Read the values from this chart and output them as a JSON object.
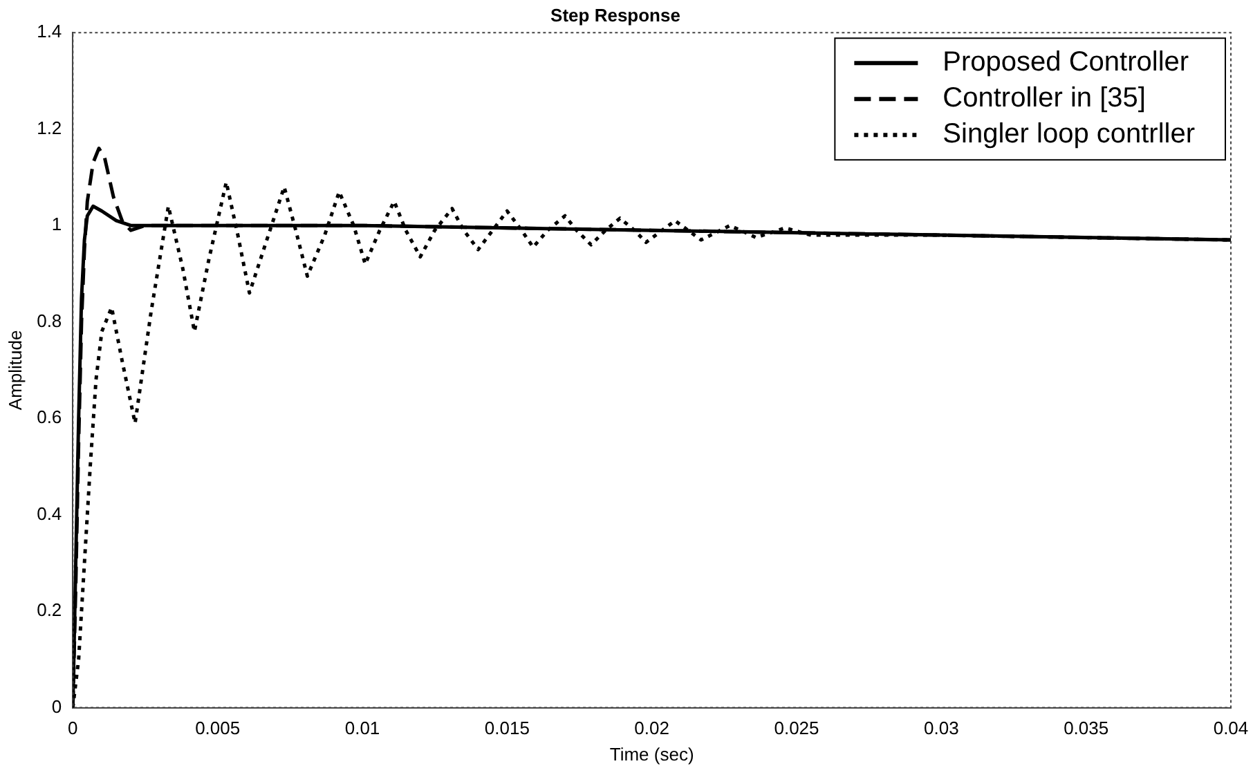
{
  "chart_data": {
    "type": "line",
    "title": "Step Response",
    "xlabel": "Time (sec)",
    "ylabel": "Amplitude",
    "xlim": [
      0,
      0.04
    ],
    "xticks": [
      0,
      0.005,
      0.01,
      0.015,
      0.02,
      0.025,
      0.03,
      0.035,
      0.04
    ],
    "ylim": [
      0,
      1.4
    ],
    "yticks": [
      0,
      0.2,
      0.4,
      0.6,
      0.8,
      1,
      1.2,
      1.4
    ],
    "grid": false,
    "legend": "top right",
    "marker": "none",
    "series": [
      {
        "name": "Proposed Controller",
        "color": "#000000",
        "line_style": "solid",
        "x": [
          0,
          0.0001,
          0.0002,
          0.0003,
          0.0004,
          0.0005,
          0.0007,
          0.001,
          0.0015,
          0.002,
          0.003,
          0.01,
          0.02,
          0.03,
          0.04
        ],
        "values": [
          0,
          0.3,
          0.6,
          0.85,
          0.97,
          1.02,
          1.04,
          1.03,
          1.01,
          1.0,
          1.0,
          1.0,
          0.99,
          0.98,
          0.97
        ]
      },
      {
        "name": "Controller in [35]",
        "color": "#000000",
        "line_style": "dashed",
        "x": [
          0,
          0.0001,
          0.0002,
          0.0003,
          0.0004,
          0.0005,
          0.0007,
          0.0009,
          0.0011,
          0.0014,
          0.0017,
          0.002,
          0.0025,
          0.003,
          0.01,
          0.02,
          0.03,
          0.04
        ],
        "values": [
          0,
          0.25,
          0.55,
          0.8,
          0.95,
          1.05,
          1.13,
          1.16,
          1.14,
          1.06,
          1.01,
          0.99,
          1.0,
          1.0,
          1.0,
          0.99,
          0.98,
          0.97
        ]
      },
      {
        "name": "Singler loop contrller",
        "color": "#000000",
        "line_style": "dotted",
        "x": [
          0,
          0.0002,
          0.0004,
          0.0006,
          0.0008,
          0.001,
          0.00134,
          0.0017,
          0.00215,
          0.0027,
          0.0033,
          0.0038,
          0.0042,
          0.0047,
          0.0053,
          0.0057,
          0.0061,
          0.0067,
          0.0073,
          0.0077,
          0.0081,
          0.0087,
          0.0092,
          0.0097,
          0.0101,
          0.0106,
          0.0111,
          0.0115,
          0.012,
          0.0125,
          0.0131,
          0.0135,
          0.014,
          0.0145,
          0.015,
          0.0155,
          0.0159,
          0.0164,
          0.017,
          0.0174,
          0.0179,
          0.0184,
          0.0189,
          0.0194,
          0.0198,
          0.0208,
          0.0217,
          0.0227,
          0.0236,
          0.0246,
          0.0255,
          0.03,
          0.04
        ],
        "values": [
          0,
          0.1,
          0.3,
          0.5,
          0.68,
          0.78,
          0.83,
          0.72,
          0.59,
          0.82,
          1.04,
          0.91,
          0.78,
          0.93,
          1.09,
          0.98,
          0.86,
          0.97,
          1.08,
          0.99,
          0.895,
          0.98,
          1.07,
          1.0,
          0.92,
          0.99,
          1.05,
          0.99,
          0.935,
          0.99,
          1.035,
          0.99,
          0.95,
          0.99,
          1.03,
          0.99,
          0.955,
          0.99,
          1.02,
          0.99,
          0.96,
          0.99,
          1.015,
          0.99,
          0.965,
          1.01,
          0.97,
          1.0,
          0.975,
          0.995,
          0.98,
          0.98,
          0.97
        ]
      }
    ]
  }
}
